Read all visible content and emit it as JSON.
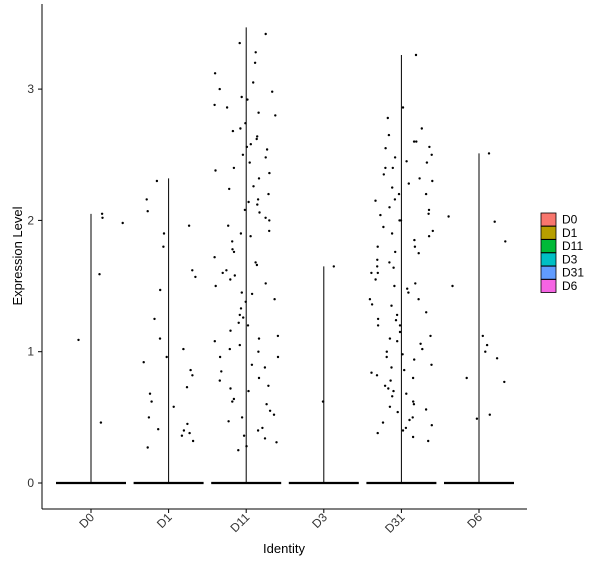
{
  "chart_data": {
    "type": "violin",
    "xlabel": "Identity",
    "ylabel": "Expression Level",
    "ylim": [
      -0.2,
      3.6
    ],
    "yticks": [
      0,
      1,
      2,
      3
    ],
    "categories": [
      "D0",
      "D1",
      "D11",
      "D3",
      "D31",
      "D6"
    ],
    "colors": {
      "D0": "#F8766D",
      "D1": "#B79F00",
      "D11": "#00BA38",
      "D3": "#00BFC4",
      "D31": "#619CFF",
      "D6": "#F564E3"
    },
    "max_values": [
      2.05,
      2.32,
      3.47,
      1.65,
      3.26,
      2.51
    ],
    "points": {
      "D0": [
        0.46,
        1.09,
        1.59,
        1.98,
        2.02,
        2.05
      ],
      "D1": [
        0.27,
        0.32,
        0.36,
        0.38,
        0.4,
        0.41,
        0.45,
        0.5,
        0.58,
        0.62,
        0.68,
        0.73,
        0.82,
        0.86,
        0.92,
        0.96,
        1.02,
        1.1,
        1.25,
        1.47,
        1.57,
        1.62,
        1.8,
        1.9,
        1.96,
        2.07,
        2.16,
        2.3
      ],
      "D11": [
        0.25,
        0.28,
        0.31,
        0.36,
        0.42,
        0.47,
        0.5,
        0.55,
        0.6,
        0.64,
        0.7,
        0.74,
        0.8,
        0.85,
        0.9,
        0.96,
        1.0,
        1.05,
        1.1,
        1.16,
        1.22,
        1.28,
        1.33,
        1.4,
        1.45,
        1.5,
        1.55,
        1.6,
        1.66,
        1.72,
        1.78,
        1.84,
        1.9,
        1.96,
        2.02,
        2.08,
        2.14,
        2.2,
        2.26,
        2.32,
        2.38,
        2.44,
        2.5,
        2.56,
        2.62,
        2.68,
        2.74,
        2.8,
        2.86,
        2.92,
        2.98,
        3.05,
        3.12,
        3.2,
        3.28,
        3.35,
        3.42,
        0.4,
        0.62,
        0.88,
        1.12,
        1.38,
        1.62,
        1.88,
        2.12,
        2.36,
        2.58,
        2.82,
        3.0,
        0.52,
        0.78,
        1.02,
        1.26,
        1.52,
        1.76,
        2.0,
        2.24,
        2.48,
        2.7,
        2.94,
        1.08,
        1.58,
        2.06,
        2.54,
        0.34,
        0.96,
        1.44,
        1.92,
        2.4,
        2.88,
        0.72,
        1.2,
        1.68,
        2.16,
        2.64
      ],
      "D3": [
        0.62,
        1.65
      ],
      "D31": [
        0.32,
        0.35,
        0.38,
        0.42,
        0.46,
        0.5,
        0.54,
        0.58,
        0.62,
        0.66,
        0.7,
        0.74,
        0.78,
        0.82,
        0.86,
        0.9,
        0.94,
        0.98,
        1.02,
        1.06,
        1.1,
        1.15,
        1.2,
        1.25,
        1.3,
        1.35,
        1.4,
        1.45,
        1.5,
        1.55,
        1.6,
        1.65,
        1.7,
        1.75,
        1.8,
        1.85,
        1.9,
        1.95,
        2.0,
        2.05,
        2.1,
        2.15,
        2.2,
        2.25,
        2.3,
        2.35,
        2.4,
        2.45,
        2.5,
        2.55,
        2.6,
        2.65,
        2.7,
        2.78,
        2.86,
        3.26,
        0.4,
        0.6,
        0.8,
        1.0,
        1.2,
        1.4,
        1.6,
        1.8,
        2.0,
        2.2,
        2.4,
        2.6,
        0.48,
        0.68,
        0.88,
        1.08,
        1.28,
        1.48,
        1.68,
        1.88,
        2.08,
        2.28,
        2.48,
        0.56,
        0.96,
        1.36,
        1.76,
        2.16,
        2.56,
        0.44,
        0.84,
        1.24,
        1.64,
        2.04,
        2.44,
        0.72,
        1.12,
        1.52,
        1.92,
        2.32
      ],
      "D6": [
        0.49,
        0.52,
        0.77,
        0.8,
        0.95,
        1.0,
        1.05,
        1.12,
        1.5,
        1.84,
        1.99,
        2.03,
        2.51
      ]
    }
  }
}
